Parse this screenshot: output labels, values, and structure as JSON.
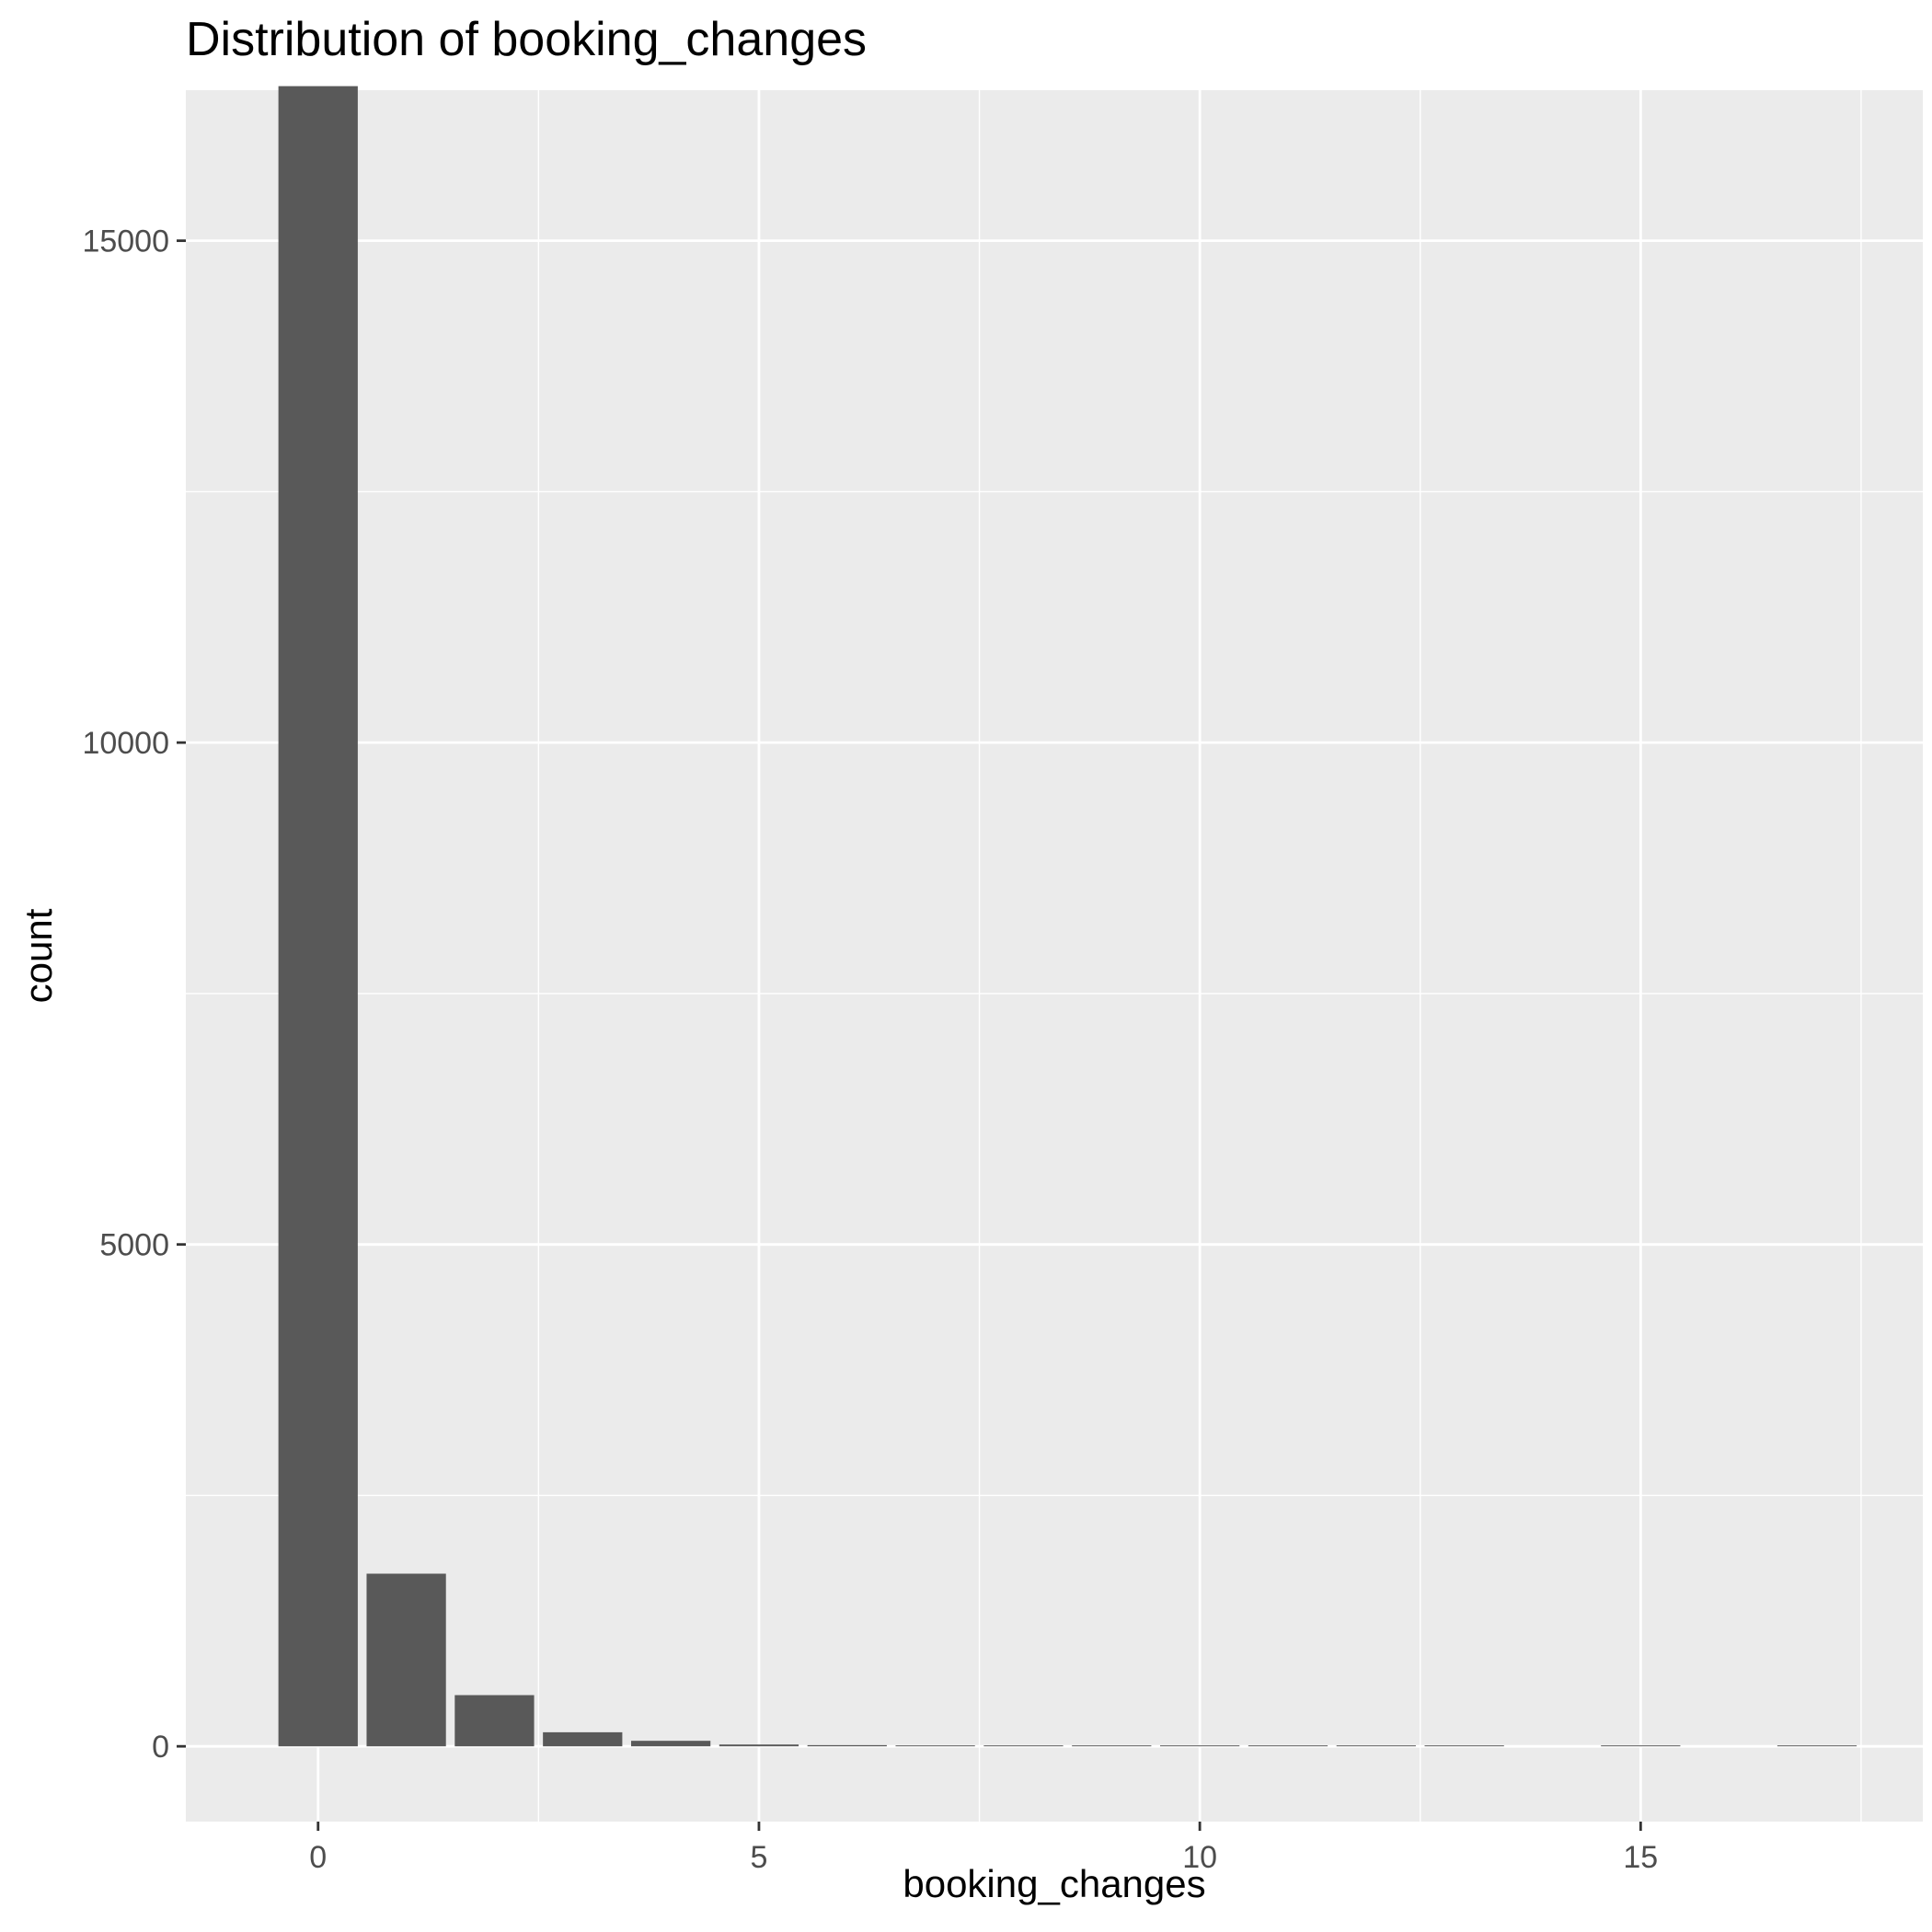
{
  "chart_data": {
    "type": "bar",
    "title": "Distribution of booking_changes",
    "xlabel": "booking_changes",
    "ylabel": "count",
    "x": [
      0,
      1,
      2,
      3,
      4,
      5,
      6,
      7,
      8,
      9,
      10,
      11,
      12,
      13,
      14,
      15,
      16,
      17
    ],
    "values": [
      16540,
      1720,
      510,
      140,
      55,
      18,
      12,
      8,
      4,
      2,
      1,
      2,
      1,
      1,
      0,
      1,
      0,
      1
    ],
    "xlim": [
      -1.5,
      18.2
    ],
    "ylim": [
      -750,
      16500
    ],
    "x_ticks": [
      0,
      5,
      10,
      15
    ],
    "x_tick_labels": [
      "0",
      "5",
      "10",
      "15"
    ],
    "y_ticks": [
      0,
      5000,
      10000,
      15000
    ],
    "y_tick_labels": [
      "0",
      "5000",
      "10000",
      "15000"
    ],
    "grid": true,
    "colors": {
      "bar": "#595959",
      "panel": "#ebebeb",
      "grid": "#ffffff",
      "tick": "#333333"
    }
  }
}
